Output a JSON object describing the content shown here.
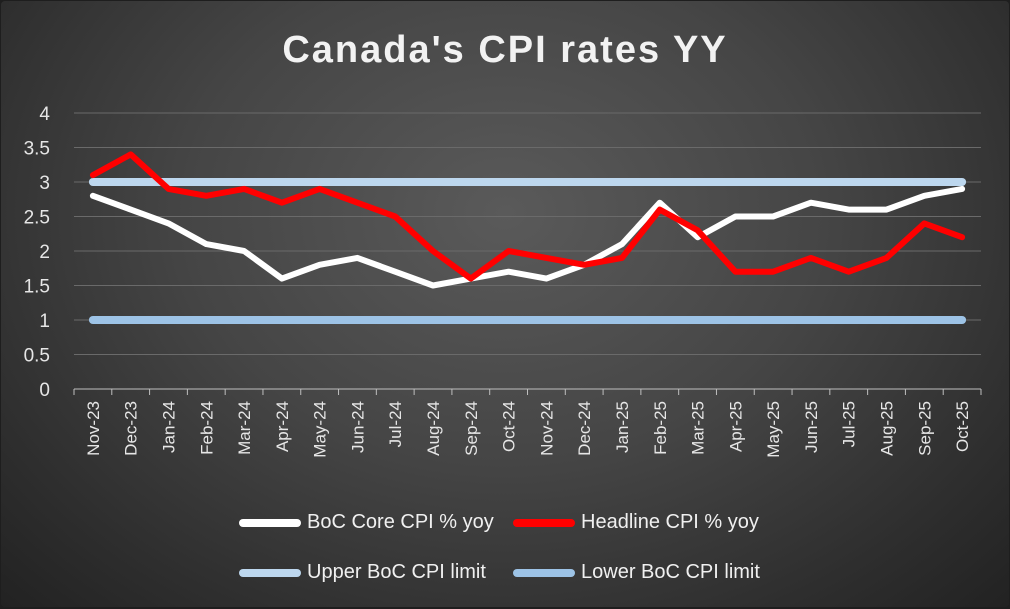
{
  "chart_data": {
    "type": "line",
    "title": "Canada's CPI rates YY",
    "categories": [
      "Nov-23",
      "Dec-23",
      "Jan-24",
      "Feb-24",
      "Mar-24",
      "Apr-24",
      "May-24",
      "Jun-24",
      "Jul-24",
      "Aug-24",
      "Sep-24",
      "Oct-24",
      "Nov-24",
      "Dec-24",
      "Jan-25",
      "Feb-25",
      "Mar-25",
      "Apr-25",
      "May-25",
      "Jun-25",
      "Jul-25",
      "Aug-25",
      "Sep-25",
      "Oct-25"
    ],
    "ylim": [
      0,
      4
    ],
    "yticks": [
      "0",
      "0.5",
      "1",
      "1.5",
      "2",
      "2.5",
      "3",
      "3.5",
      "4"
    ],
    "grid": true,
    "legend_position": "bottom",
    "series": [
      {
        "name": "BoC Core CPI % yoy",
        "color": "#ffffff",
        "values": [
          2.8,
          2.6,
          2.4,
          2.1,
          2.0,
          1.6,
          1.8,
          1.9,
          1.7,
          1.5,
          1.6,
          1.7,
          1.6,
          1.8,
          2.1,
          2.7,
          2.2,
          2.5,
          2.5,
          2.7,
          2.6,
          2.6,
          2.8,
          2.9
        ]
      },
      {
        "name": "Headline CPI % yoy",
        "color": "#ff0000",
        "values": [
          3.1,
          3.4,
          2.9,
          2.8,
          2.9,
          2.7,
          2.9,
          2.7,
          2.5,
          2.0,
          1.6,
          2.0,
          1.9,
          1.8,
          1.9,
          2.6,
          2.3,
          1.7,
          1.7,
          1.9,
          1.7,
          1.9,
          2.4,
          2.2
        ]
      },
      {
        "name": "Upper BoC CPI limit",
        "color": "#bdd7ee",
        "values": [
          3,
          3,
          3,
          3,
          3,
          3,
          3,
          3,
          3,
          3,
          3,
          3,
          3,
          3,
          3,
          3,
          3,
          3,
          3,
          3,
          3,
          3,
          3,
          3
        ]
      },
      {
        "name": "Lower BoC CPI limit",
        "color": "#9dc3e6",
        "values": [
          1,
          1,
          1,
          1,
          1,
          1,
          1,
          1,
          1,
          1,
          1,
          1,
          1,
          1,
          1,
          1,
          1,
          1,
          1,
          1,
          1,
          1,
          1,
          1
        ]
      }
    ]
  }
}
